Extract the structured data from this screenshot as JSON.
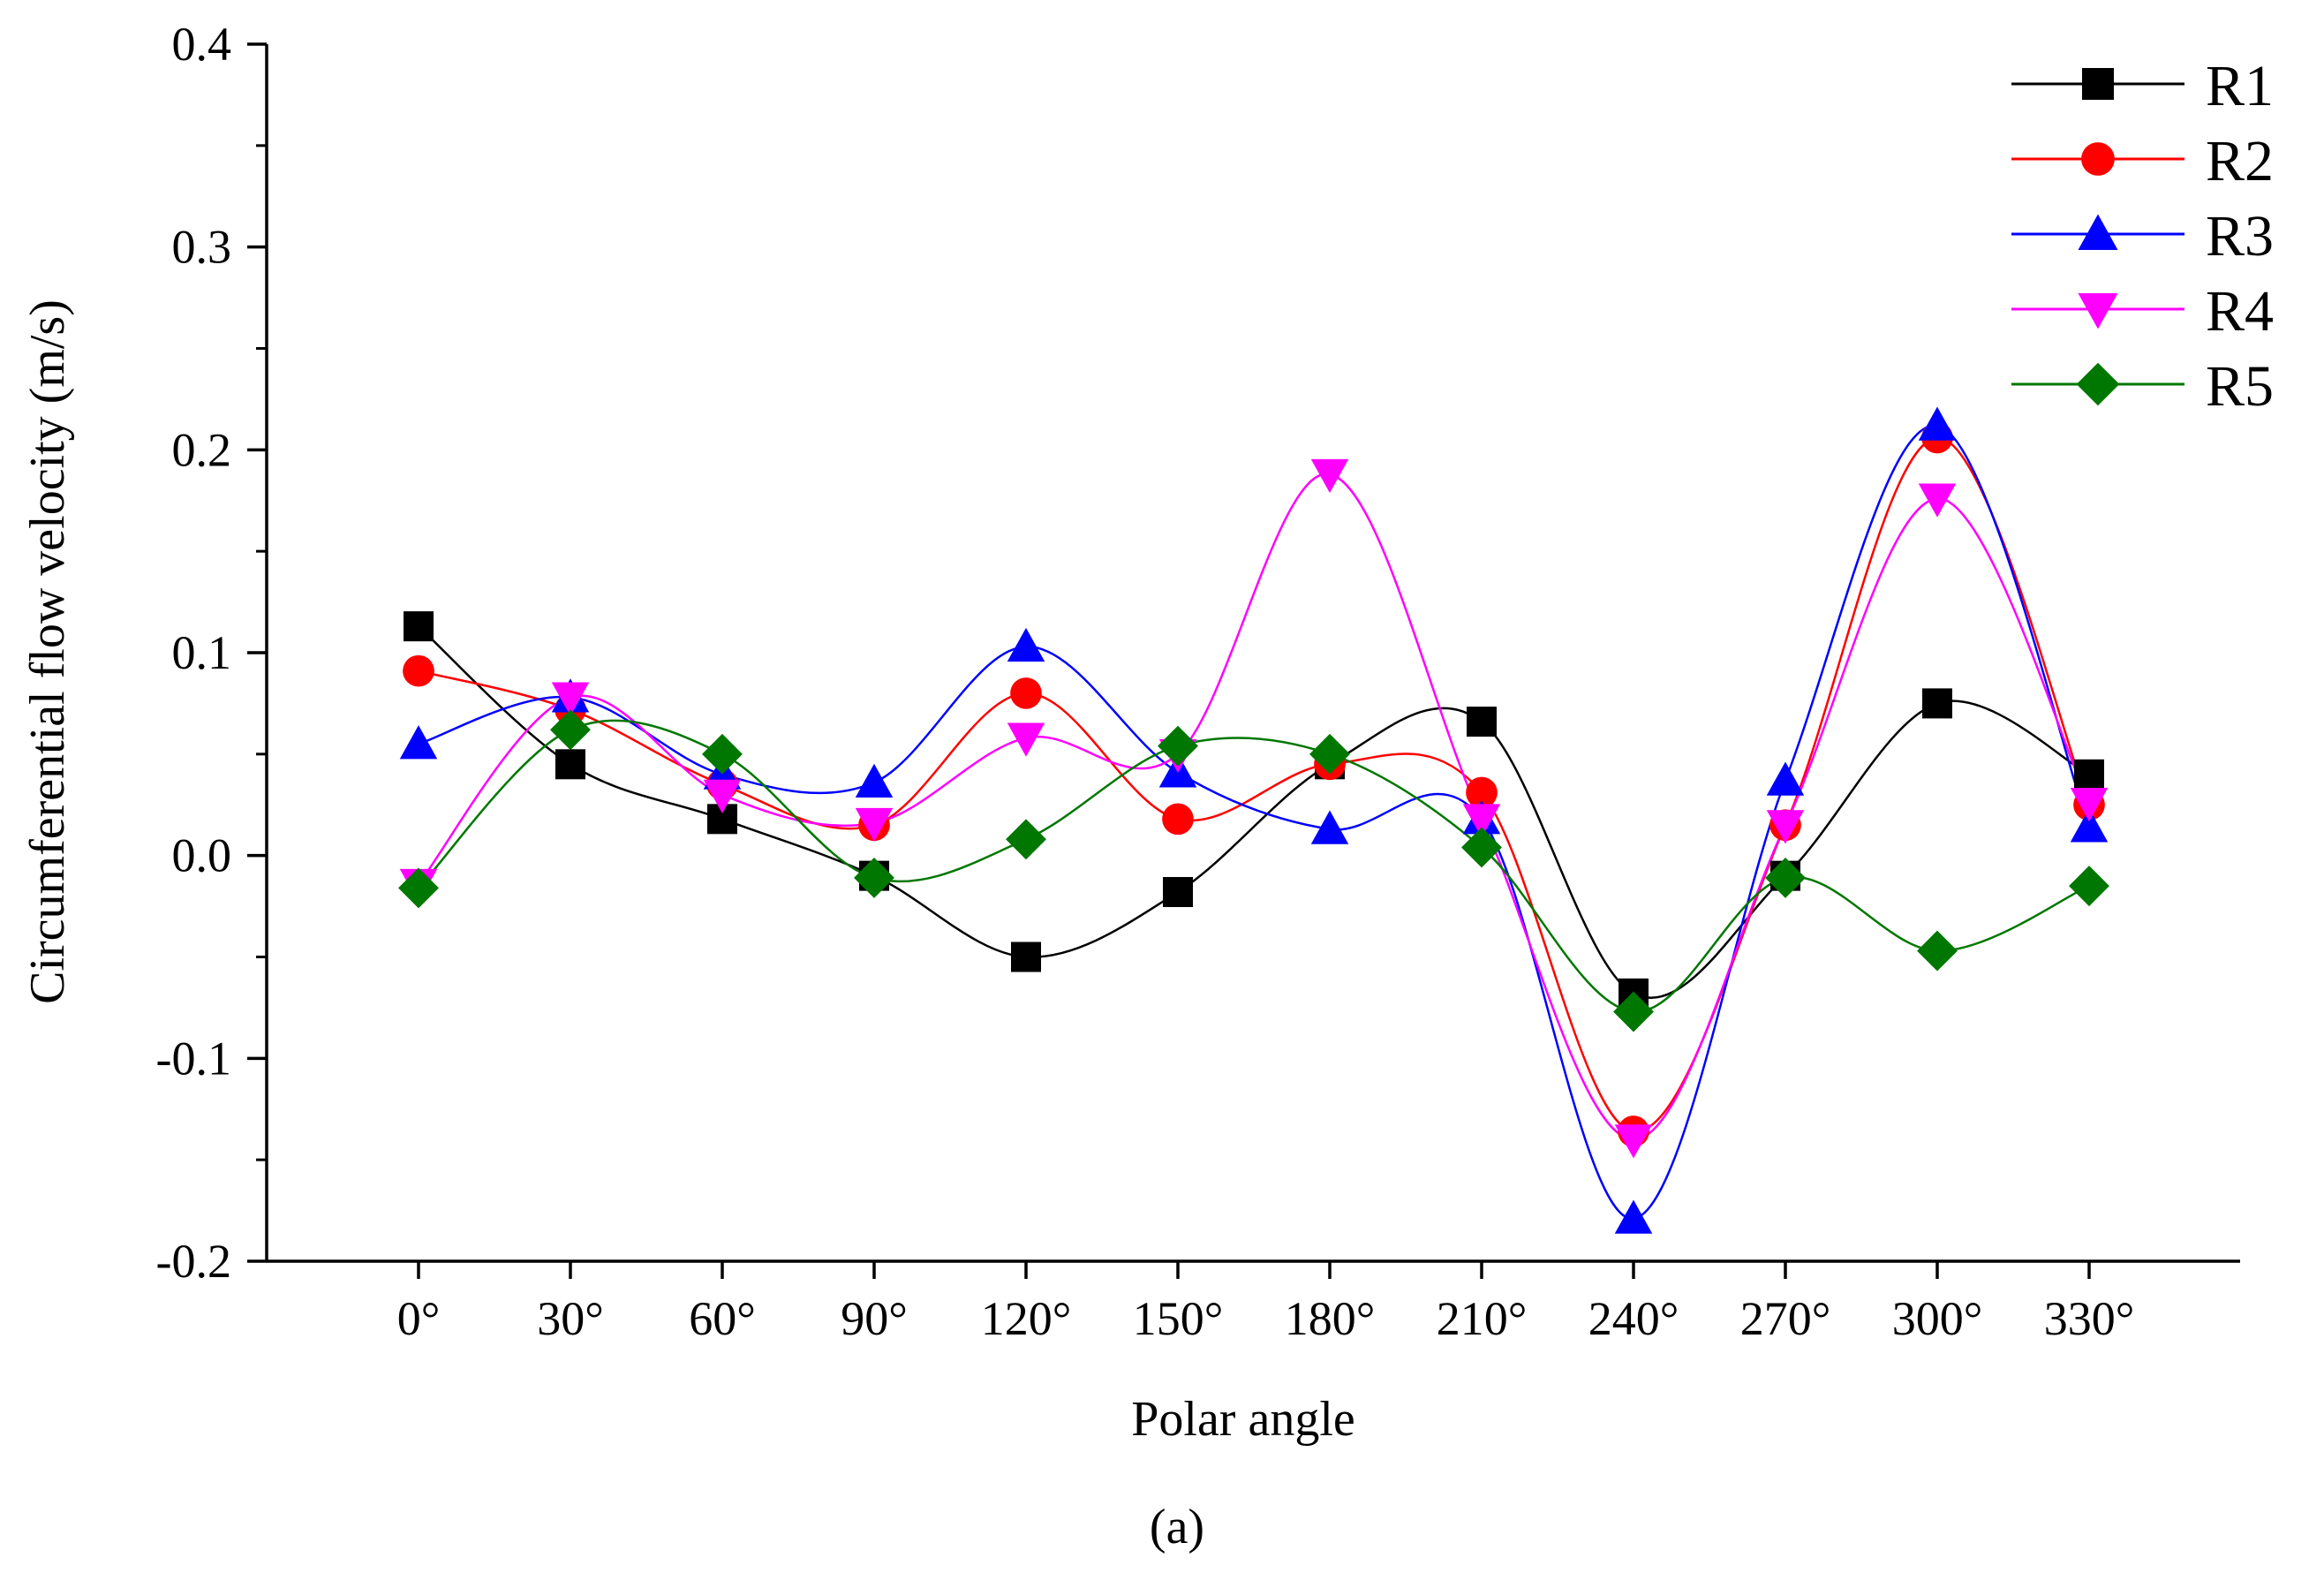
{
  "chart_data": {
    "type": "line",
    "title": "",
    "xlabel": "Polar angle",
    "ylabel": "Circumferential flow velocity (m/s)",
    "categories": [
      "0°",
      "30°",
      "60°",
      "90°",
      "120°",
      "150°",
      "180°",
      "210°",
      "240°",
      "270°",
      "300°",
      "330°"
    ],
    "ylim": [
      -0.2,
      0.4
    ],
    "yticks": [
      -0.2,
      -0.1,
      0.0,
      0.1,
      0.2,
      0.3,
      0.4
    ],
    "ytick_labels": [
      "-0.2",
      "-0.1",
      "0.0",
      "0.1",
      "0.2",
      "0.3",
      "0.4"
    ],
    "grid": false,
    "legend_position": "top-right",
    "series": [
      {
        "name": "R1",
        "color": "#000000",
        "marker": "square",
        "values": [
          0.113,
          0.045,
          0.018,
          -0.01,
          -0.05,
          -0.018,
          0.045,
          0.066,
          -0.068,
          -0.01,
          0.075,
          0.04
        ]
      },
      {
        "name": "R2",
        "color": "#ff0000",
        "marker": "circle",
        "values": [
          0.091,
          0.072,
          0.035,
          0.015,
          0.08,
          0.018,
          0.045,
          0.031,
          -0.136,
          0.015,
          0.206,
          0.025
        ]
      },
      {
        "name": "R3",
        "color": "#0000ff",
        "marker": "triangle-up",
        "values": [
          0.055,
          0.078,
          0.04,
          0.036,
          0.103,
          0.041,
          0.013,
          0.018,
          -0.179,
          0.037,
          0.212,
          0.014
        ]
      },
      {
        "name": "R4",
        "color": "#ff00ff",
        "marker": "triangle-down",
        "values": [
          -0.014,
          0.078,
          0.03,
          0.016,
          0.058,
          0.05,
          0.188,
          0.018,
          -0.14,
          0.015,
          0.176,
          0.026
        ]
      },
      {
        "name": "R5",
        "color": "#007700",
        "marker": "diamond",
        "values": [
          -0.016,
          0.062,
          0.05,
          -0.011,
          0.008,
          0.054,
          0.05,
          0.004,
          -0.077,
          -0.011,
          -0.047,
          -0.015
        ]
      }
    ],
    "caption": "(a)"
  }
}
